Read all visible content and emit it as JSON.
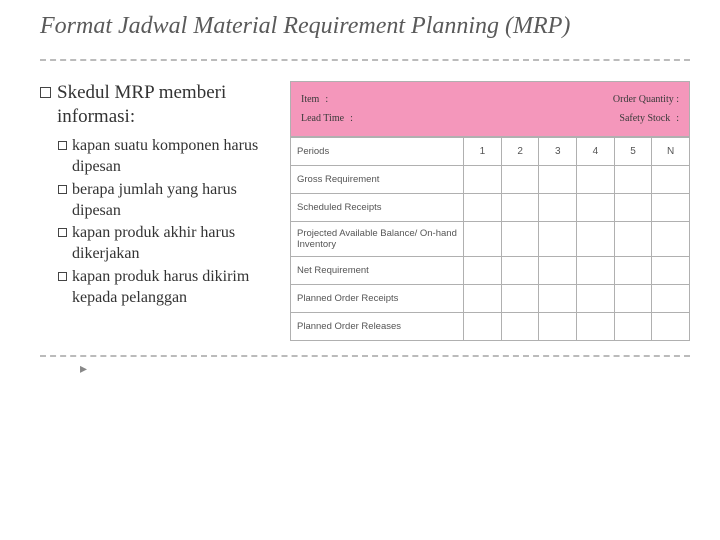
{
  "title": "Format Jadwal Material Requirement Planning (MRP)",
  "main_bullet": "Skedul MRP memberi informasi:",
  "sub_bullets": [
    "kapan suatu komponen harus dipesan",
    "berapa jumlah yang harus dipesan",
    "kapan produk akhir harus dikerjakan",
    "kapan produk harus dikirim kepada pelanggan"
  ],
  "header": {
    "item_label": "Item",
    "order_qty_label": "Order Quantity :",
    "lead_time_label": "Lead Time",
    "safety_stock_label": "Safety Stock",
    "colon": ":"
  },
  "table": {
    "periods_label": "Periods",
    "periods": [
      "1",
      "2",
      "3",
      "4",
      "5",
      "N"
    ],
    "rows": [
      "Gross Requirement",
      "Scheduled Receipts",
      "Projected Available Balance/ On-hand Inventory",
      "Net Requirement",
      "Planned Order Receipts",
      "Planned Order Releases"
    ]
  },
  "colors": {
    "header_bg": "#f497bb",
    "border": "#b0b0b0"
  }
}
